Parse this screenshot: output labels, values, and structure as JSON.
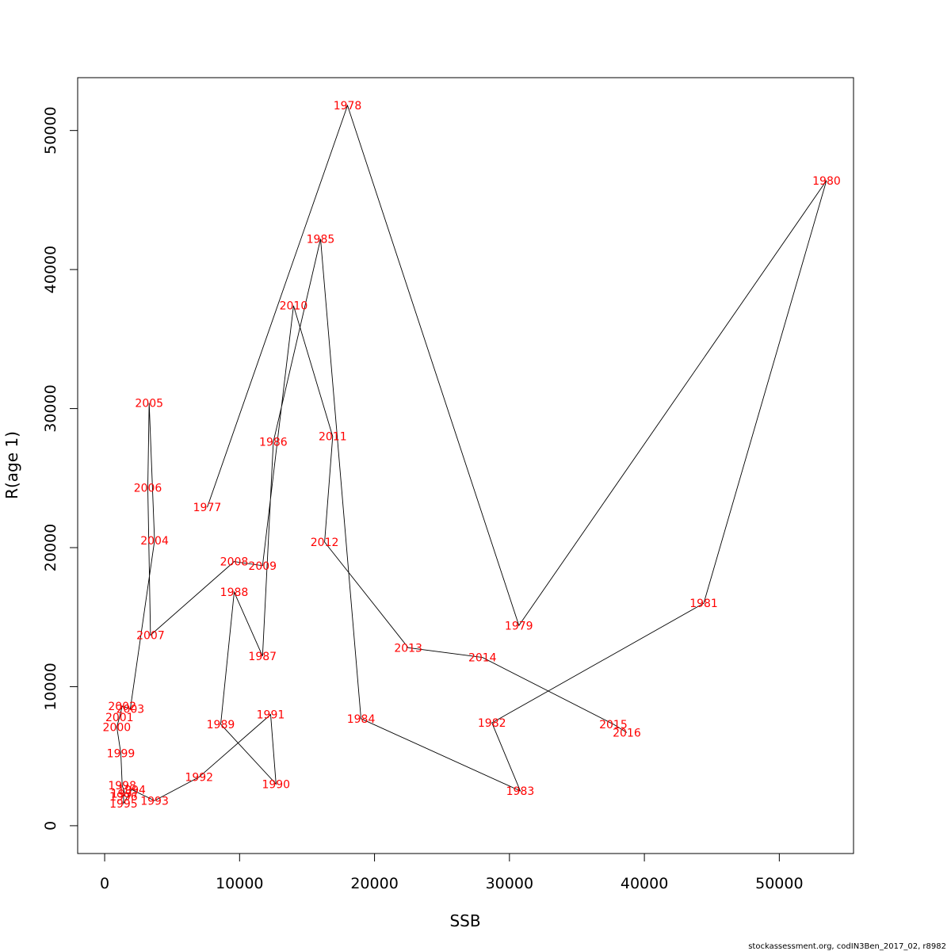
{
  "chart_data": {
    "type": "scatter",
    "xlabel": "SSB",
    "ylabel": "R(age 1)",
    "xlim": [
      -2000,
      55500
    ],
    "ylim": [
      -2000,
      53800
    ],
    "xticks": [
      0,
      10000,
      20000,
      30000,
      40000,
      50000
    ],
    "yticks": [
      0,
      10000,
      20000,
      30000,
      40000,
      50000
    ],
    "grid": false,
    "connect_points": true,
    "line_color": "#000000",
    "label_color": "#ff0000",
    "points": [
      {
        "label": "1977",
        "x": 7600,
        "y": 22900
      },
      {
        "label": "1978",
        "x": 18000,
        "y": 51800
      },
      {
        "label": "1979",
        "x": 30700,
        "y": 14400
      },
      {
        "label": "1980",
        "x": 53500,
        "y": 46400
      },
      {
        "label": "1981",
        "x": 44400,
        "y": 16000
      },
      {
        "label": "1982",
        "x": 28700,
        "y": 7400
      },
      {
        "label": "1983",
        "x": 30800,
        "y": 2500
      },
      {
        "label": "1984",
        "x": 19000,
        "y": 7700
      },
      {
        "label": "1985",
        "x": 16000,
        "y": 42200
      },
      {
        "label": "1986",
        "x": 12500,
        "y": 27600
      },
      {
        "label": "1987",
        "x": 11700,
        "y": 12200
      },
      {
        "label": "1988",
        "x": 9600,
        "y": 16800
      },
      {
        "label": "1989",
        "x": 8600,
        "y": 7300
      },
      {
        "label": "1990",
        "x": 12700,
        "y": 3000
      },
      {
        "label": "1991",
        "x": 12300,
        "y": 8000
      },
      {
        "label": "1992",
        "x": 7000,
        "y": 3500
      },
      {
        "label": "1993",
        "x": 3700,
        "y": 1800
      },
      {
        "label": "1994",
        "x": 2000,
        "y": 2600
      },
      {
        "label": "1995",
        "x": 1400,
        "y": 1600
      },
      {
        "label": "1996",
        "x": 1400,
        "y": 2100
      },
      {
        "label": "1997",
        "x": 1500,
        "y": 2300
      },
      {
        "label": "1998",
        "x": 1300,
        "y": 2900
      },
      {
        "label": "1999",
        "x": 1200,
        "y": 5200
      },
      {
        "label": "2000",
        "x": 900,
        "y": 7100
      },
      {
        "label": "2001",
        "x": 1100,
        "y": 7800
      },
      {
        "label": "2002",
        "x": 1300,
        "y": 8600
      },
      {
        "label": "2003",
        "x": 1900,
        "y": 8400
      },
      {
        "label": "2004",
        "x": 3700,
        "y": 20500
      },
      {
        "label": "2005",
        "x": 3300,
        "y": 30400
      },
      {
        "label": "2006",
        "x": 3200,
        "y": 24300
      },
      {
        "label": "2007",
        "x": 3400,
        "y": 13700
      },
      {
        "label": "2008",
        "x": 9600,
        "y": 19000
      },
      {
        "label": "2009",
        "x": 11700,
        "y": 18700
      },
      {
        "label": "2010",
        "x": 14000,
        "y": 37400
      },
      {
        "label": "2011",
        "x": 16900,
        "y": 28000
      },
      {
        "label": "2012",
        "x": 16300,
        "y": 20400
      },
      {
        "label": "2013",
        "x": 22500,
        "y": 12800
      },
      {
        "label": "2014",
        "x": 28000,
        "y": 12100
      },
      {
        "label": "2015",
        "x": 37700,
        "y": 7300
      },
      {
        "label": "2016",
        "x": 38700,
        "y": 6700
      }
    ]
  },
  "footer": "stockassessment.org, codIN3Ben_2017_02, r8982"
}
